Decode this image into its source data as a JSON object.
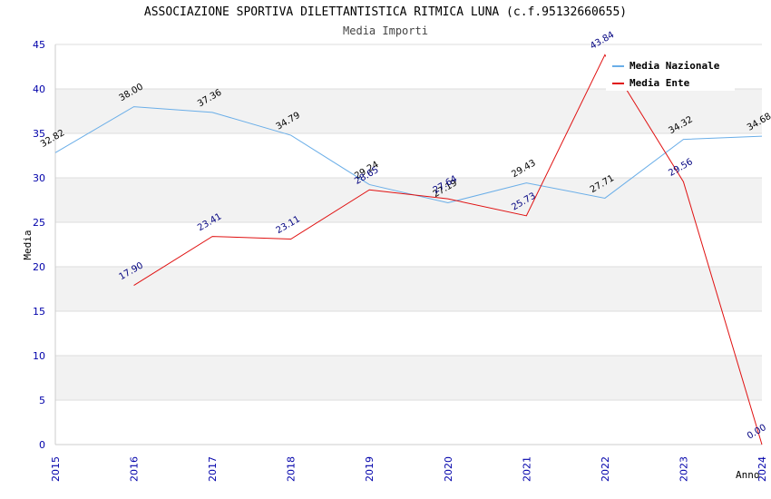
{
  "chart_data": {
    "type": "line",
    "title": "ASSOCIAZIONE SPORTIVA DILETTANTISTICA RITMICA LUNA (c.f.95132660655)",
    "subtitle": "Media Importi",
    "xlabel": "Anno",
    "ylabel": "Media",
    "x": [
      "2015",
      "2016",
      "2017",
      "2018",
      "2019",
      "2020",
      "2021",
      "2022",
      "2023",
      "2024"
    ],
    "ylim": [
      0,
      45
    ],
    "yticks": [
      "0",
      "5",
      "10",
      "15",
      "20",
      "25",
      "30",
      "35",
      "40",
      "45"
    ],
    "grid": true,
    "legend_position": "top-right",
    "series": [
      {
        "name": "Media Nazionale",
        "color": "#6aaee8",
        "values": [
          32.82,
          38.0,
          37.36,
          34.79,
          29.24,
          27.19,
          29.43,
          27.71,
          34.32,
          34.68
        ],
        "labels": [
          "32.82",
          "38.00",
          "37.36",
          "34.79",
          "29.24",
          "27.19",
          "29.43",
          "27.71",
          "34.32",
          "34.68"
        ]
      },
      {
        "name": "Media Ente",
        "color": "#e01010",
        "values": [
          null,
          17.9,
          23.41,
          23.11,
          28.65,
          27.64,
          25.73,
          43.84,
          29.56,
          0.0
        ],
        "labels": [
          "",
          "17.90",
          "23.41",
          "23.11",
          "28.65",
          "27.64",
          "25.73",
          "43.84",
          "29.56",
          "0.00"
        ]
      }
    ]
  }
}
